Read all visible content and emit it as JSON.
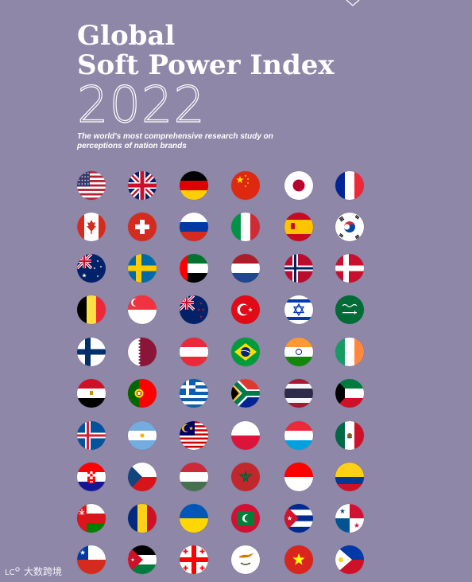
{
  "title": {
    "line1": "Global",
    "line2": "Soft Power Index",
    "year": "2022"
  },
  "tagline": "The world's most comprehensive research study on perceptions of nation brands",
  "watermark": {
    "logo": "watermark-logo-icon",
    "text": "大数跨境"
  },
  "flags": [
    [
      "united-states-flag-icon",
      "united-kingdom-flag-icon",
      "germany-flag-icon",
      "china-flag-icon",
      "japan-flag-icon",
      "france-flag-icon"
    ],
    [
      "canada-flag-icon",
      "switzerland-flag-icon",
      "russia-flag-icon",
      "italy-flag-icon",
      "spain-flag-icon",
      "south-korea-flag-icon"
    ],
    [
      "australia-flag-icon",
      "sweden-flag-icon",
      "uae-flag-icon",
      "netherlands-flag-icon",
      "norway-flag-icon",
      "denmark-flag-icon"
    ],
    [
      "belgium-flag-icon",
      "singapore-flag-icon",
      "new-zealand-flag-icon",
      "turkey-flag-icon",
      "israel-flag-icon",
      "saudi-arabia-flag-icon"
    ],
    [
      "finland-flag-icon",
      "qatar-flag-icon",
      "austria-flag-icon",
      "brazil-flag-icon",
      "india-flag-icon",
      "ireland-flag-icon"
    ],
    [
      "egypt-flag-icon",
      "portugal-flag-icon",
      "greece-flag-icon",
      "south-africa-flag-icon",
      "thailand-flag-icon",
      "kuwait-flag-icon"
    ],
    [
      "iceland-flag-icon",
      "argentina-flag-icon",
      "malaysia-flag-icon",
      "poland-flag-icon",
      "luxembourg-flag-icon",
      "mexico-flag-icon"
    ],
    [
      "croatia-flag-icon",
      "czech-republic-flag-icon",
      "hungary-flag-icon",
      "morocco-flag-icon",
      "indonesia-flag-icon",
      "colombia-flag-icon"
    ],
    [
      "oman-flag-icon",
      "romania-flag-icon",
      "ukraine-flag-icon",
      "maldives-flag-icon",
      "cuba-flag-icon",
      "panama-flag-icon"
    ],
    [
      "chile-flag-icon",
      "jordan-flag-icon",
      "georgia-flag-icon",
      "cyprus-flag-icon",
      "vietnam-flag-icon",
      "philippines-flag-icon"
    ]
  ],
  "colors": {
    "background": "#8f87a8",
    "text": "#ffffff"
  }
}
